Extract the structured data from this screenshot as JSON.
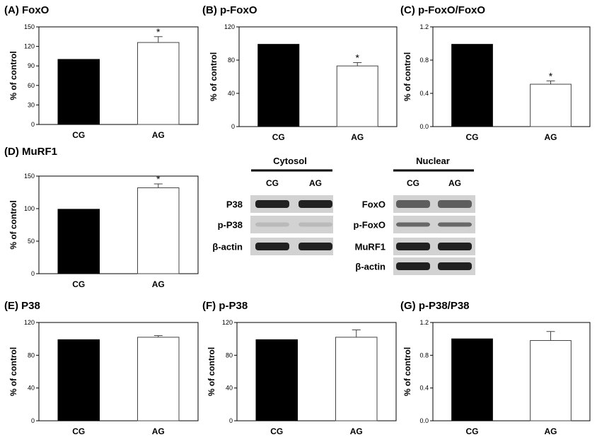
{
  "chart_data": [
    {
      "id": "A",
      "type": "bar",
      "title": "(A) FoxO",
      "ylabel": "% of control",
      "categories": [
        "CG",
        "AG"
      ],
      "values": [
        100,
        126
      ],
      "errors": [
        0,
        9
      ],
      "significance": [
        "",
        "*"
      ],
      "ylim": [
        0,
        150
      ],
      "yticks": [
        "0",
        "30",
        "60",
        "90",
        "120",
        "150"
      ]
    },
    {
      "id": "B",
      "type": "bar",
      "title": "(B) p-FoxO",
      "ylabel": "% of control",
      "categories": [
        "CG",
        "AG"
      ],
      "values": [
        99,
        73
      ],
      "errors": [
        0,
        4
      ],
      "significance": [
        "",
        "*"
      ],
      "ylim": [
        0,
        120
      ],
      "yticks": [
        "0",
        "40",
        "80",
        "120"
      ]
    },
    {
      "id": "C",
      "type": "bar",
      "title": "(C) p-FoxO/FoxO",
      "ylabel": "% of control",
      "categories": [
        "CG",
        "AG"
      ],
      "values": [
        0.99,
        0.51
      ],
      "errors": [
        0,
        0.04
      ],
      "significance": [
        "",
        "*"
      ],
      "ylim": [
        0,
        1.2
      ],
      "yticks": [
        "0.0",
        "0.4",
        "0.8",
        "1.2"
      ]
    },
    {
      "id": "D",
      "type": "bar",
      "title": "(D) MuRF1",
      "ylabel": "% of control",
      "categories": [
        "CG",
        "AG"
      ],
      "values": [
        99,
        132
      ],
      "errors": [
        0,
        6
      ],
      "significance": [
        "",
        "*"
      ],
      "ylim": [
        0,
        150
      ],
      "yticks": [
        "0",
        "50",
        "100",
        "150"
      ]
    },
    {
      "id": "E",
      "type": "bar",
      "title": "(E) P38",
      "ylabel": "% of control",
      "categories": [
        "CG",
        "AG"
      ],
      "values": [
        99,
        102
      ],
      "errors": [
        0,
        2
      ],
      "significance": [
        "",
        ""
      ],
      "ylim": [
        0,
        120
      ],
      "yticks": [
        "0",
        "40",
        "80",
        "120"
      ]
    },
    {
      "id": "F",
      "type": "bar",
      "title": "(F) p-P38",
      "ylabel": "% of control",
      "categories": [
        "CG",
        "AG"
      ],
      "values": [
        99,
        102
      ],
      "errors": [
        0,
        9
      ],
      "significance": [
        "",
        ""
      ],
      "ylim": [
        0,
        120
      ],
      "yticks": [
        "0",
        "40",
        "80",
        "120"
      ]
    },
    {
      "id": "G",
      "type": "bar",
      "title": "(G) p-P38/P38",
      "ylabel": "% of control",
      "categories": [
        "CG",
        "AG"
      ],
      "values": [
        1.0,
        0.98
      ],
      "errors": [
        0,
        0.11
      ],
      "significance": [
        "",
        ""
      ],
      "ylim": [
        0,
        1.2
      ],
      "yticks": [
        "0.0",
        "0.4",
        "0.8",
        "1.2"
      ]
    }
  ],
  "blots": [
    {
      "header": "Cytosol",
      "lanes": [
        "CG",
        "AG"
      ],
      "rows": [
        "P38",
        "p-P38",
        "β-actin"
      ]
    },
    {
      "header": "Nuclear",
      "lanes": [
        "CG",
        "AG"
      ],
      "rows": [
        "FoxO",
        "p-FoxO",
        "MuRF1",
        "β-actin"
      ]
    }
  ],
  "colors": {
    "cg_bar": "#000000",
    "ag_bar": "#ffffff",
    "blot_bg": "#d2d2d2",
    "band": "#111111"
  }
}
